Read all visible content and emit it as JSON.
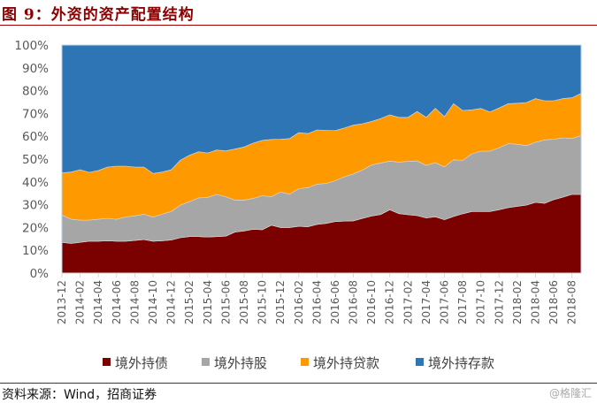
{
  "title": "图 9：外资的资产配置结构",
  "source": "资料来源：Wind，招商证券",
  "watermark": "@格隆汇",
  "chart_data": {
    "type": "area",
    "stacked": "percent",
    "title": "",
    "xlabel": "",
    "ylabel": "",
    "ylim": [
      0,
      100
    ],
    "y_ticks": [
      "0%",
      "10%",
      "20%",
      "30%",
      "40%",
      "50%",
      "60%",
      "70%",
      "80%",
      "90%",
      "100%"
    ],
    "grid": false,
    "legend": "bottom",
    "categories": [
      "2013-12",
      "2014-01",
      "2014-02",
      "2014-03",
      "2014-04",
      "2014-05",
      "2014-06",
      "2014-07",
      "2014-08",
      "2014-09",
      "2014-10",
      "2014-11",
      "2014-12",
      "2015-01",
      "2015-02",
      "2015-03",
      "2015-04",
      "2015-05",
      "2015-06",
      "2015-07",
      "2015-08",
      "2015-09",
      "2015-10",
      "2015-11",
      "2015-12",
      "2016-01",
      "2016-02",
      "2016-03",
      "2016-04",
      "2016-05",
      "2016-06",
      "2016-07",
      "2016-08",
      "2016-09",
      "2016-10",
      "2016-11",
      "2016-12",
      "2017-01",
      "2017-02",
      "2017-03",
      "2017-04",
      "2017-05",
      "2017-06",
      "2017-07",
      "2017-08",
      "2017-09",
      "2017-10",
      "2017-11",
      "2017-12",
      "2018-01",
      "2018-02",
      "2018-03",
      "2018-04",
      "2018-05",
      "2018-06",
      "2018-07",
      "2018-08",
      "2018-09"
    ],
    "series": [
      {
        "name": "境外持债",
        "color": "#7b0000",
        "values": [
          13.5,
          13,
          13.5,
          14,
          14,
          14.2,
          14,
          14,
          14.3,
          14.7,
          14,
          14.2,
          14.5,
          15.5,
          16,
          16,
          15.8,
          16,
          16.2,
          18,
          18.5,
          19.2,
          19,
          21,
          20,
          20,
          20.5,
          20.3,
          21.3,
          21.8,
          22.6,
          22.8,
          22.9,
          24,
          25,
          25.7,
          27.8,
          26.1,
          25.6,
          25.2,
          24.2,
          24.7,
          23.4,
          24.8,
          26,
          27,
          27,
          27,
          27.8,
          28.7,
          29.3,
          29.8,
          31,
          30.6,
          32.2,
          33.3,
          34.5,
          34.5
        ]
      },
      {
        "name": "境外持股",
        "color": "#a6a6a6",
        "values": [
          12,
          10.6,
          9.7,
          9.2,
          9.6,
          9.8,
          9.6,
          10.6,
          10.8,
          11.1,
          10.6,
          11.6,
          12.5,
          14.3,
          15.3,
          17,
          17.4,
          18.5,
          17.3,
          14,
          13.5,
          13.6,
          14.9,
          12.5,
          15.6,
          14.6,
          16.5,
          17.2,
          17.7,
          17.5,
          17.9,
          19.4,
          20.6,
          21.2,
          22.4,
          22.6,
          21.3,
          22.6,
          23.4,
          24,
          23,
          23.7,
          23.2,
          24.9,
          23.4,
          25.3,
          26.5,
          26.5,
          27.2,
          28.1,
          27.2,
          26.1,
          26.4,
          27.8,
          26.5,
          26,
          24.5,
          25.8
        ]
      },
      {
        "name": "境外持贷款",
        "color": "#ff9900",
        "values": [
          18.5,
          20.7,
          22.1,
          21,
          21.4,
          22.5,
          23.3,
          22.3,
          21.4,
          20.7,
          19.1,
          18.5,
          18.3,
          19.7,
          20.4,
          20.2,
          19.5,
          19.5,
          20.1,
          22.4,
          23.3,
          24.2,
          24.3,
          25.1,
          23.1,
          24.4,
          24.6,
          23.7,
          23.8,
          23.3,
          22,
          21.4,
          21.4,
          20.3,
          19.1,
          19.5,
          20.3,
          19.6,
          19.3,
          21.7,
          21.1,
          23.9,
          22,
          24.6,
          21.9,
          19.3,
          18.7,
          17.2,
          17.4,
          17.5,
          18,
          18.9,
          19.1,
          17.2,
          16.9,
          17.2,
          17.9,
          18.5
        ]
      },
      {
        "name": "境外持存款",
        "color": "#2e75b6",
        "values": [
          56,
          55.7,
          54.7,
          55.8,
          55,
          53.5,
          53.1,
          53.1,
          53.5,
          53.5,
          56.3,
          55.7,
          54.7,
          50.5,
          48.3,
          46.8,
          47.3,
          46,
          46.4,
          45.6,
          44.7,
          43,
          41.8,
          41.4,
          41.3,
          41,
          38.4,
          38.8,
          37.2,
          37.4,
          37.5,
          36.4,
          35.1,
          34.5,
          33.5,
          32.2,
          30.6,
          31.7,
          31.7,
          29.1,
          31.7,
          27.7,
          31.4,
          25.7,
          28.7,
          28.4,
          27.8,
          29.3,
          27.6,
          25.7,
          25.5,
          25.2,
          23.5,
          24.4,
          24.4,
          23.5,
          23.1,
          21.2
        ]
      }
    ]
  }
}
